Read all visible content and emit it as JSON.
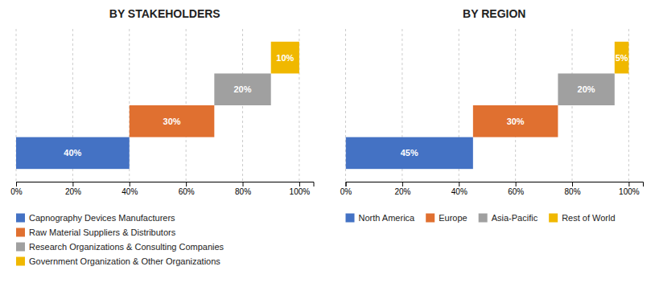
{
  "chart_data": [
    {
      "type": "bar",
      "orientation": "horizontal",
      "title": "BY STAKEHOLDERS",
      "categories": [
        "Capnography Devices Manufacturers",
        "Raw Material Suppliers & Distributors",
        "Research Organizations & Consulting Companies",
        "Government Organization  & Other Organizations"
      ],
      "values": [
        40,
        30,
        20,
        10
      ],
      "starts": [
        0,
        40,
        70,
        90
      ],
      "colors": [
        "#4472C4",
        "#E07030",
        "#A0A0A0",
        "#F0B800"
      ],
      "data_labels": true,
      "value_labels": [
        "40%",
        "30%",
        "20%",
        "10%"
      ],
      "xlim": [
        0,
        105
      ],
      "xticks": [
        {
          "value": 0,
          "label": "0%"
        },
        {
          "value": 20,
          "label": "20%"
        },
        {
          "value": 40,
          "label": "40%"
        },
        {
          "value": 60,
          "label": "60%"
        },
        {
          "value": 80,
          "label": "80%"
        },
        {
          "value": 100,
          "label": "100%"
        }
      ],
      "grid": true,
      "tick_labels": "x",
      "legend": "bottom"
    },
    {
      "type": "bar",
      "orientation": "horizontal",
      "title": "BY REGION",
      "categories": [
        "North America",
        "Europe",
        "Asia-Pacific",
        "Rest of World"
      ],
      "values": [
        45,
        30,
        20,
        5
      ],
      "starts": [
        0,
        45,
        75,
        95
      ],
      "colors": [
        "#4472C4",
        "#E07030",
        "#A0A0A0",
        "#F0B800"
      ],
      "data_labels": true,
      "value_labels": [
        "45%",
        "30%",
        "20%",
        "5%"
      ],
      "xlim": [
        0,
        105
      ],
      "xticks": [
        {
          "value": 0,
          "label": "0%"
        },
        {
          "value": 20,
          "label": "20%"
        },
        {
          "value": 40,
          "label": "40%"
        },
        {
          "value": 60,
          "label": "60%"
        },
        {
          "value": 80,
          "label": "80%"
        },
        {
          "value": 100,
          "label": "100%"
        }
      ],
      "grid": true,
      "tick_labels": "x",
      "legend": "bottom"
    }
  ]
}
